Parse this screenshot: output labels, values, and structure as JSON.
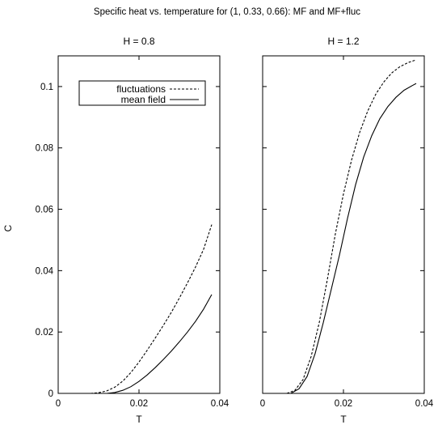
{
  "suptitle": "Specific heat vs. temperature for (1, 0.33, 0.66): MF and MF+fluc",
  "ylabel": "C",
  "chart_data": [
    {
      "type": "line",
      "title": "H = 0.8",
      "xlabel": "T",
      "ylabel": "C",
      "xlim": [
        0,
        0.04
      ],
      "ylim": [
        0,
        0.11
      ],
      "xticks": [
        "0",
        "0.02",
        "0.04"
      ],
      "yticks": [
        "0",
        "0.02",
        "0.04",
        "0.06",
        "0.08",
        "0.1"
      ],
      "legend": {
        "placement": "top-left"
      },
      "series": [
        {
          "name": "fluctuations",
          "style": "dashed",
          "x": [
            0,
            0.008,
            0.01,
            0.012,
            0.014,
            0.016,
            0.018,
            0.02,
            0.022,
            0.024,
            0.026,
            0.028,
            0.03,
            0.032,
            0.034,
            0.036,
            0.038
          ],
          "y": [
            0,
            0,
            0.0002,
            0.0008,
            0.002,
            0.004,
            0.0068,
            0.0102,
            0.014,
            0.018,
            0.0221,
            0.0264,
            0.0311,
            0.036,
            0.0412,
            0.047,
            0.055
          ]
        },
        {
          "name": "mean field",
          "style": "solid",
          "x": [
            0,
            0.012,
            0.014,
            0.016,
            0.018,
            0.02,
            0.022,
            0.024,
            0.026,
            0.028,
            0.03,
            0.032,
            0.034,
            0.036,
            0.038
          ],
          "y": [
            0,
            0,
            0.0003,
            0.001,
            0.0022,
            0.0039,
            0.006,
            0.0084,
            0.011,
            0.0138,
            0.0168,
            0.02,
            0.0235,
            0.0275,
            0.0322
          ]
        }
      ]
    },
    {
      "type": "line",
      "title": "H = 1.2",
      "xlabel": "T",
      "xlim": [
        0,
        0.04
      ],
      "ylim": [
        0,
        0.11
      ],
      "xticks": [
        "0",
        "0.02",
        "0.04"
      ],
      "series": [
        {
          "name": "fluctuations",
          "style": "dashed",
          "x": [
            0,
            0.006,
            0.008,
            0.01,
            0.012,
            0.014,
            0.016,
            0.018,
            0.02,
            0.022,
            0.024,
            0.026,
            0.028,
            0.03,
            0.032,
            0.034,
            0.036,
            0.038
          ],
          "y": [
            0,
            0,
            0.001,
            0.0045,
            0.012,
            0.023,
            0.037,
            0.052,
            0.065,
            0.076,
            0.085,
            0.092,
            0.0975,
            0.1015,
            0.1045,
            0.1065,
            0.1078,
            0.1087
          ]
        },
        {
          "name": "mean field",
          "style": "solid",
          "x": [
            0,
            0.007,
            0.009,
            0.011,
            0.013,
            0.015,
            0.017,
            0.019,
            0.021,
            0.023,
            0.025,
            0.027,
            0.029,
            0.031,
            0.033,
            0.035,
            0.037,
            0.038
          ],
          "y": [
            0,
            0,
            0.0015,
            0.0055,
            0.013,
            0.023,
            0.034,
            0.045,
            0.057,
            0.068,
            0.077,
            0.084,
            0.0895,
            0.0935,
            0.0965,
            0.0988,
            0.1003,
            0.101
          ]
        }
      ]
    }
  ]
}
